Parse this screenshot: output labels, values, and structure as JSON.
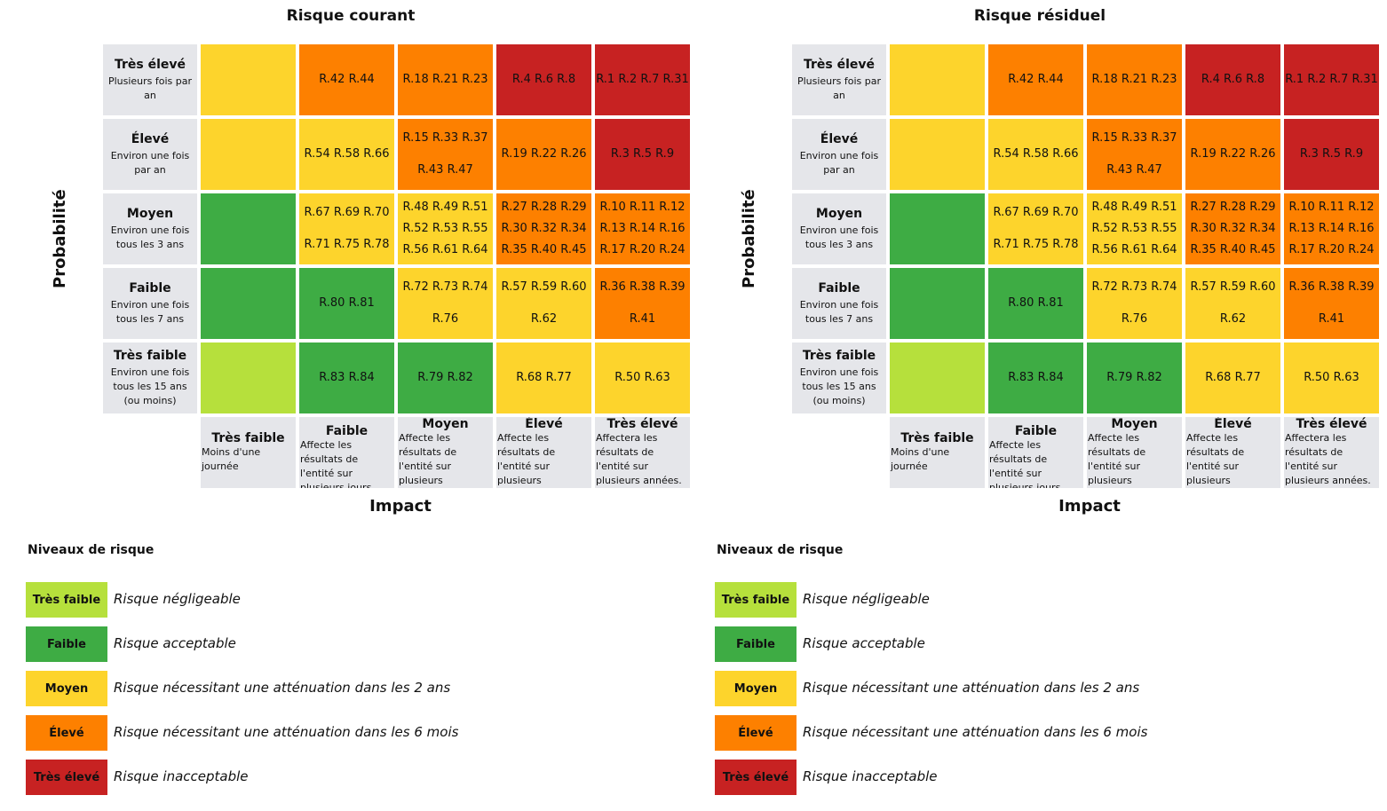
{
  "colors": {
    "Très faible": "#b6e03c",
    "Faible": "#3eac44",
    "Moyen": "#fdd42c",
    "Élevé": "#fd8000",
    "Très élevé": "#c72222"
  },
  "axis": {
    "ylabel": "Probabilité",
    "xlabel": "Impact",
    "probability": [
      {
        "level": "Très élevé",
        "desc": "Plusieurs fois par an"
      },
      {
        "level": "Élevé",
        "desc": "Environ une fois par an"
      },
      {
        "level": "Moyen",
        "desc": "Environ une fois tous les 3 ans"
      },
      {
        "level": "Faible",
        "desc": "Environ une fois tous les 7 ans"
      },
      {
        "level": "Très faible",
        "desc": "Environ une fois tous les 15 ans (ou moins)"
      }
    ],
    "impact": [
      {
        "level": "Très faible",
        "desc": "Moins d'une journée"
      },
      {
        "level": "Faible",
        "desc": "Affecte les résultats de l'entité sur plusieurs jours"
      },
      {
        "level": "Moyen",
        "desc": "Affecte les résultats de l'entité sur plusieurs semaines"
      },
      {
        "level": "Élevé",
        "desc": "Affecte les résultats de l'entité sur plusieurs trimestres"
      },
      {
        "level": "Très élevé",
        "desc": "Affectera les résultats de l'entité sur plusieurs années."
      }
    ]
  },
  "legend": {
    "title": "Niveaux de risque",
    "items": [
      {
        "level": "Très faible",
        "desc": "Risque négligeable"
      },
      {
        "level": "Faible",
        "desc": "Risque acceptable"
      },
      {
        "level": "Moyen",
        "desc": "Risque nécessitant une atténuation dans les 2 ans"
      },
      {
        "level": "Élevé",
        "desc": "Risque nécessitant une atténuation dans les 6 mois"
      },
      {
        "level": "Très élevé",
        "desc": "Risque inacceptable"
      }
    ]
  },
  "chart_data": [
    {
      "type": "heatmap",
      "title": "Risque courant",
      "xlabel": "Impact",
      "ylabel": "Probabilité",
      "rows": [
        "Très élevé",
        "Élevé",
        "Moyen",
        "Faible",
        "Très faible"
      ],
      "cols": [
        "Très faible",
        "Faible",
        "Moyen",
        "Élevé",
        "Très élevé"
      ],
      "cell_levels": [
        [
          "Moyen",
          "Élevé",
          "Élevé",
          "Très élevé",
          "Très élevé"
        ],
        [
          "Moyen",
          "Moyen",
          "Élevé",
          "Élevé",
          "Très élevé"
        ],
        [
          "Faible",
          "Moyen",
          "Moyen",
          "Élevé",
          "Élevé"
        ],
        [
          "Faible",
          "Faible",
          "Moyen",
          "Moyen",
          "Élevé"
        ],
        [
          "Très faible",
          "Faible",
          "Faible",
          "Moyen",
          "Moyen"
        ]
      ],
      "cell_risks": [
        [
          [],
          [
            "R.42 R.44"
          ],
          [
            "R.18 R.21 R.23"
          ],
          [
            "R.4 R.6 R.8"
          ],
          [
            "R.1 R.2 R.7 R.31"
          ]
        ],
        [
          [],
          [
            "R.54 R.58 R.66"
          ],
          [
            "R.15 R.33 R.37",
            "R.43 R.47"
          ],
          [
            "R.19 R.22 R.26"
          ],
          [
            "R.3 R.5 R.9"
          ]
        ],
        [
          [],
          [
            "R.67 R.69 R.70",
            "R.71 R.75 R.78"
          ],
          [
            "R.48 R.49 R.51",
            "R.52 R.53 R.55",
            "R.56 R.61 R.64"
          ],
          [
            "R.27 R.28 R.29",
            "R.30 R.32 R.34",
            "R.35 R.40 R.45"
          ],
          [
            "R.10 R.11 R.12",
            "R.13 R.14 R.16",
            "R.17 R.20 R.24"
          ]
        ],
        [
          [],
          [
            "R.80 R.81"
          ],
          [
            "R.72 R.73 R.74",
            "R.76"
          ],
          [
            "R.57 R.59 R.60",
            "R.62"
          ],
          [
            "R.36 R.38 R.39",
            "R.41"
          ]
        ],
        [
          [],
          [
            "R.83 R.84"
          ],
          [
            "R.79 R.82"
          ],
          [
            "R.68 R.77"
          ],
          [
            "R.50 R.63"
          ]
        ]
      ]
    },
    {
      "type": "heatmap",
      "title": "Risque résiduel",
      "xlabel": "Impact",
      "ylabel": "Probabilité",
      "rows": [
        "Très élevé",
        "Élevé",
        "Moyen",
        "Faible",
        "Très faible"
      ],
      "cols": [
        "Très faible",
        "Faible",
        "Moyen",
        "Élevé",
        "Très élevé"
      ],
      "cell_levels": [
        [
          "Moyen",
          "Élevé",
          "Élevé",
          "Très élevé",
          "Très élevé"
        ],
        [
          "Moyen",
          "Moyen",
          "Élevé",
          "Élevé",
          "Très élevé"
        ],
        [
          "Faible",
          "Moyen",
          "Moyen",
          "Élevé",
          "Élevé"
        ],
        [
          "Faible",
          "Faible",
          "Moyen",
          "Moyen",
          "Élevé"
        ],
        [
          "Très faible",
          "Faible",
          "Faible",
          "Moyen",
          "Moyen"
        ]
      ],
      "cell_risks": [
        [
          [],
          [
            "R.42 R.44"
          ],
          [
            "R.18 R.21 R.23"
          ],
          [
            "R.4 R.6 R.8"
          ],
          [
            "R.1 R.2 R.7 R.31"
          ]
        ],
        [
          [],
          [
            "R.54 R.58 R.66"
          ],
          [
            "R.15 R.33 R.37",
            "R.43 R.47"
          ],
          [
            "R.19 R.22 R.26"
          ],
          [
            "R.3 R.5 R.9"
          ]
        ],
        [
          [],
          [
            "R.67 R.69 R.70",
            "R.71 R.75 R.78"
          ],
          [
            "R.48 R.49 R.51",
            "R.52 R.53 R.55",
            "R.56 R.61 R.64"
          ],
          [
            "R.27 R.28 R.29",
            "R.30 R.32 R.34",
            "R.35 R.40 R.45"
          ],
          [
            "R.10 R.11 R.12",
            "R.13 R.14 R.16",
            "R.17 R.20 R.24"
          ]
        ],
        [
          [],
          [
            "R.80 R.81"
          ],
          [
            "R.72 R.73 R.74",
            "R.76"
          ],
          [
            "R.57 R.59 R.60",
            "R.62"
          ],
          [
            "R.36 R.38 R.39",
            "R.41"
          ]
        ],
        [
          [],
          [
            "R.83 R.84"
          ],
          [
            "R.79 R.82"
          ],
          [
            "R.68 R.77"
          ],
          [
            "R.50 R.63"
          ]
        ]
      ]
    }
  ]
}
